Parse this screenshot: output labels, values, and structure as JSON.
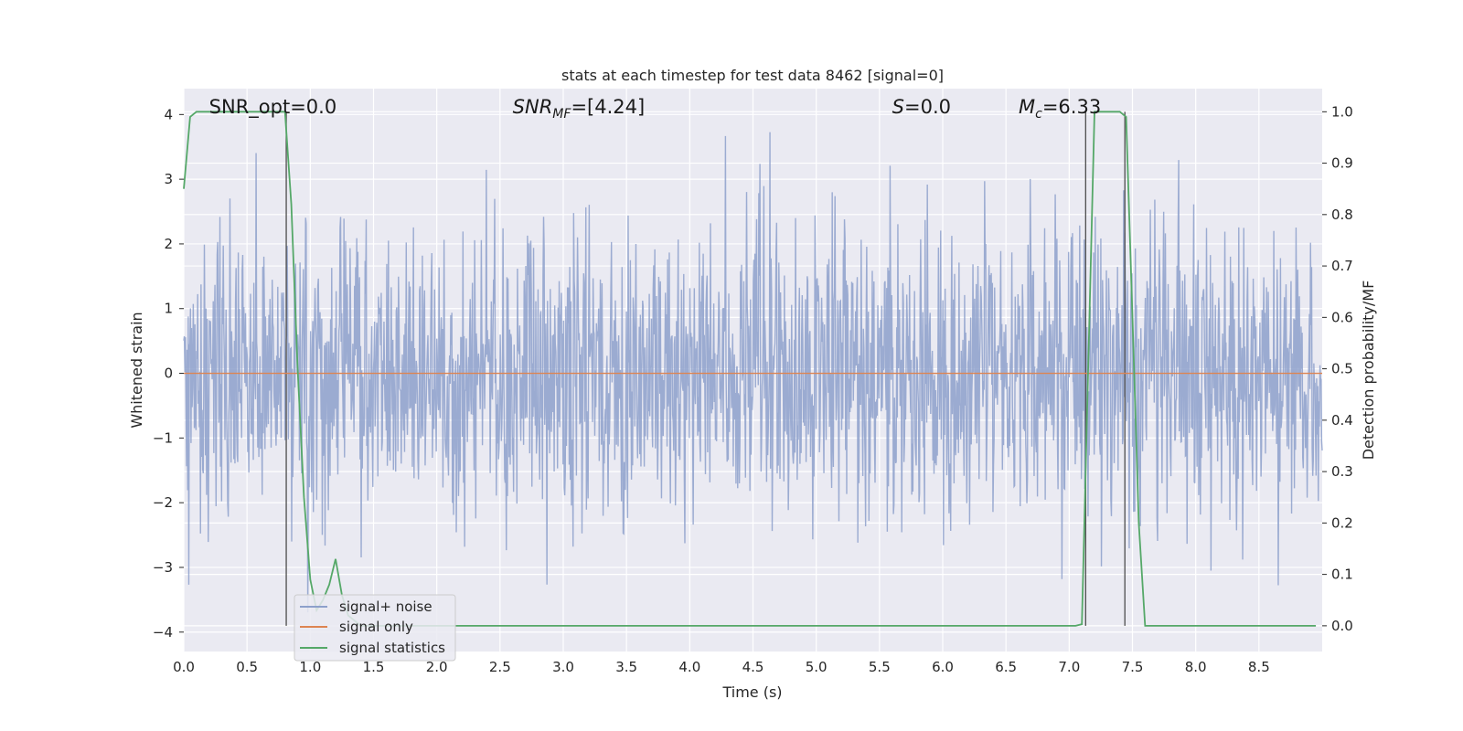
{
  "chart_data": {
    "type": "line",
    "title": "stats at each timestep for test data 8462 [signal=0]",
    "xlabel": "Time (s)",
    "ylabel": "Whitened strain",
    "y2label": "Detection probability/MF",
    "xlim": [
      0,
      9.0
    ],
    "ylim": [
      -4.3,
      4.4
    ],
    "y2lim": [
      -0.05,
      1.045
    ],
    "xticks": [
      "0.0",
      "0.5",
      "1.0",
      "1.5",
      "2.0",
      "2.5",
      "3.0",
      "3.5",
      "4.0",
      "4.5",
      "5.0",
      "5.5",
      "6.0",
      "6.5",
      "7.0",
      "7.5",
      "8.0",
      "8.5"
    ],
    "yticks": [
      "4",
      "3",
      "2",
      "1",
      "0",
      "−1",
      "−2",
      "−3",
      "−4"
    ],
    "y2ticks": [
      "1.0",
      "0.9",
      "0.8",
      "0.7",
      "0.6",
      "0.5",
      "0.4",
      "0.3",
      "0.2",
      "0.1",
      "0.0"
    ],
    "grid": true,
    "legend_position": "lower-left",
    "annotations": [
      {
        "name": "snr-opt",
        "base": "SNR_opt=0.0",
        "x": 0.2
      },
      {
        "name": "snr-mf",
        "base": "SNR",
        "sub": "MF",
        "rest": "=[4.24]",
        "x": 2.6
      },
      {
        "name": "s-stat",
        "base": "S",
        "rest": "=0.0",
        "x": 5.6
      },
      {
        "name": "chirp-mass",
        "base": "M",
        "sub": "c",
        "rest": "=6.33",
        "x": 6.6
      }
    ],
    "vlines": [
      0.81,
      7.13,
      7.44
    ],
    "series": [
      {
        "name": "signal+ noise",
        "color": "#8da0cb",
        "kind": "noise",
        "n_samples": 2048,
        "core_amplitude": 1.5,
        "peak_max": 4.0,
        "peak_min": -3.75
      },
      {
        "name": "signal only",
        "color": "#dd8452",
        "x": [
          0,
          9.0
        ],
        "y": [
          0,
          0
        ]
      },
      {
        "name": "signal statistics",
        "color": "#55a868",
        "x": [
          0.0,
          0.05,
          0.1,
          0.15,
          0.6,
          0.8,
          0.85,
          0.9,
          0.95,
          1.0,
          1.05,
          1.1,
          1.15,
          1.2,
          1.25,
          1.3,
          1.4,
          6.5,
          7.05,
          7.1,
          7.15,
          7.2,
          7.25,
          7.4,
          7.45,
          7.5,
          7.55,
          7.6,
          8.95
        ],
        "y": [
          0.85,
          0.99,
          1.0,
          1.0,
          1.0,
          1.0,
          0.82,
          0.5,
          0.25,
          0.09,
          0.03,
          0.05,
          0.08,
          0.13,
          0.06,
          0.02,
          0.0,
          0.0,
          0.0,
          0.003,
          0.5,
          1.0,
          1.0,
          1.0,
          0.99,
          0.6,
          0.2,
          0.0,
          0.0
        ],
        "axis": "right"
      }
    ]
  }
}
